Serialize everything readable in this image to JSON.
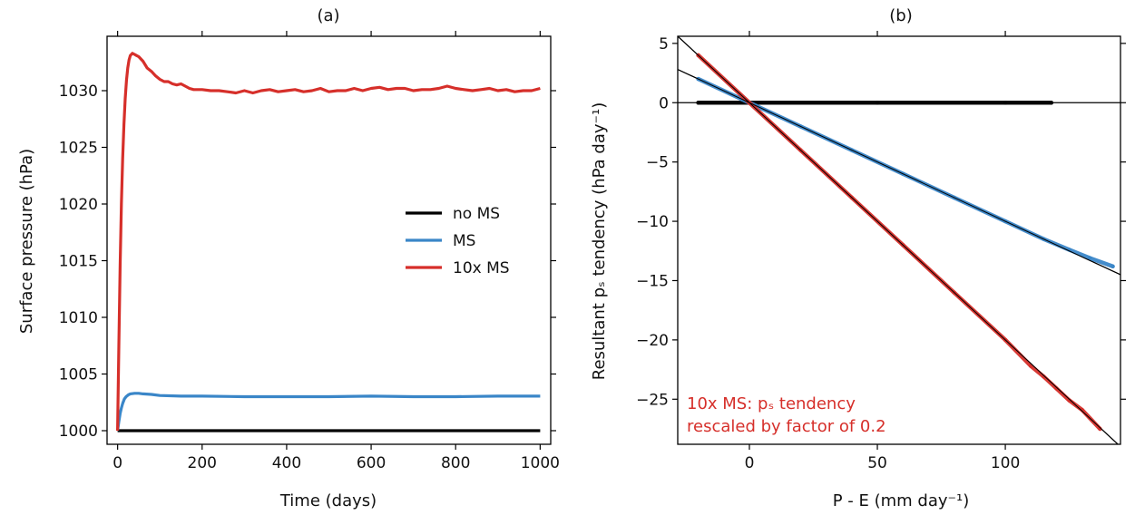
{
  "chart_data": [
    {
      "type": "line",
      "title": "(a)",
      "xlabel": "Time (days)",
      "ylabel": "Surface pressure (hPa)",
      "xlim": [
        -25,
        1025
      ],
      "ylim": [
        998.8,
        1034.8
      ],
      "xticks": [
        0,
        200,
        400,
        600,
        800,
        1000
      ],
      "yticks": [
        1000,
        1005,
        1010,
        1015,
        1020,
        1025,
        1030
      ],
      "grid": false,
      "legend_position": "center-right",
      "series": [
        {
          "name": "no MS",
          "color": "#000000",
          "x": [
            0,
            1000
          ],
          "y": [
            1000,
            1000
          ]
        },
        {
          "name": "MS",
          "color": "#3a86c8",
          "x": [
            0,
            3,
            6,
            9,
            12,
            16,
            20,
            25,
            30,
            40,
            50,
            60,
            80,
            100,
            150,
            200,
            300,
            400,
            500,
            600,
            700,
            800,
            900,
            1000
          ],
          "y": [
            1000,
            1000.8,
            1001.5,
            1002.0,
            1002.4,
            1002.8,
            1003.0,
            1003.15,
            1003.25,
            1003.3,
            1003.3,
            1003.25,
            1003.2,
            1003.1,
            1003.05,
            1003.05,
            1003.0,
            1003.0,
            1003.0,
            1003.05,
            1003.0,
            1003.0,
            1003.05,
            1003.05
          ]
        },
        {
          "name": "10x MS",
          "color": "#d62f2a",
          "x": [
            0,
            3,
            6,
            9,
            12,
            15,
            18,
            21,
            24,
            27,
            30,
            35,
            40,
            45,
            50,
            60,
            70,
            80,
            90,
            100,
            110,
            120,
            130,
            140,
            150,
            160,
            170,
            180,
            200,
            220,
            240,
            260,
            280,
            300,
            320,
            340,
            360,
            380,
            400,
            420,
            440,
            460,
            480,
            500,
            520,
            540,
            560,
            580,
            600,
            620,
            640,
            660,
            680,
            700,
            720,
            740,
            760,
            780,
            800,
            820,
            840,
            860,
            880,
            900,
            920,
            940,
            960,
            980,
            1000
          ],
          "y": [
            1000,
            1007.5,
            1014.5,
            1020.0,
            1024.0,
            1027.0,
            1029.3,
            1030.9,
            1032.0,
            1032.7,
            1033.1,
            1033.3,
            1033.2,
            1033.1,
            1033.0,
            1032.6,
            1032.0,
            1031.7,
            1031.3,
            1031.0,
            1030.8,
            1030.8,
            1030.6,
            1030.5,
            1030.6,
            1030.4,
            1030.2,
            1030.1,
            1030.1,
            1030.0,
            1030.0,
            1029.9,
            1029.8,
            1030.0,
            1029.8,
            1030.0,
            1030.1,
            1029.9,
            1030.0,
            1030.1,
            1029.9,
            1030.0,
            1030.2,
            1029.9,
            1030.0,
            1030.0,
            1030.2,
            1030.0,
            1030.2,
            1030.3,
            1030.1,
            1030.2,
            1030.2,
            1030.0,
            1030.1,
            1030.1,
            1030.2,
            1030.4,
            1030.2,
            1030.1,
            1030.0,
            1030.1,
            1030.2,
            1030.0,
            1030.1,
            1029.9,
            1030.0,
            1030.0,
            1030.2
          ]
        }
      ]
    },
    {
      "type": "scatter",
      "title": "(b)",
      "xlabel": "P - E (mm day⁻¹)",
      "ylabel": "Resultant pₛ tendency (hPa day⁻¹)",
      "xlim": [
        -28,
        145
      ],
      "ylim": [
        -28.8,
        5.6
      ],
      "xticks": [
        0,
        50,
        100
      ],
      "yticks": [
        5,
        0,
        -5,
        -10,
        -15,
        -20,
        -25
      ],
      "grid": false,
      "annotation": [
        "10x MS: pₛ tendency",
        "rescaled by factor of 0.2"
      ],
      "annotation_color": "#d62f2a",
      "reference_lines": [
        {
          "slope": 0,
          "color": "#000000"
        },
        {
          "slope": -0.1,
          "color": "#000000"
        },
        {
          "slope": -0.2,
          "color": "#000000"
        }
      ],
      "series": [
        {
          "name": "no MS",
          "color": "#000000",
          "x": [
            -20,
            0,
            50,
            100,
            118
          ],
          "y": [
            0,
            0,
            0,
            0,
            0
          ]
        },
        {
          "name": "MS",
          "color": "#3a86c8",
          "x": [
            -20,
            0,
            20,
            40,
            60,
            80,
            100,
            115,
            125,
            133,
            142
          ],
          "y": [
            2.0,
            0,
            -2.0,
            -4.0,
            -6.0,
            -8.0,
            -10.0,
            -11.5,
            -12.4,
            -13.1,
            -13.8
          ]
        },
        {
          "name": "10x MS",
          "color": "#d62f2a",
          "x": [
            -20,
            0,
            20,
            40,
            60,
            80,
            100,
            110,
            115,
            120,
            125,
            130,
            137
          ],
          "y": [
            4.0,
            0,
            -4.0,
            -8.0,
            -12.0,
            -16.0,
            -20.0,
            -22.2,
            -23.1,
            -24.1,
            -25.1,
            -25.9,
            -27.5
          ]
        }
      ]
    }
  ]
}
